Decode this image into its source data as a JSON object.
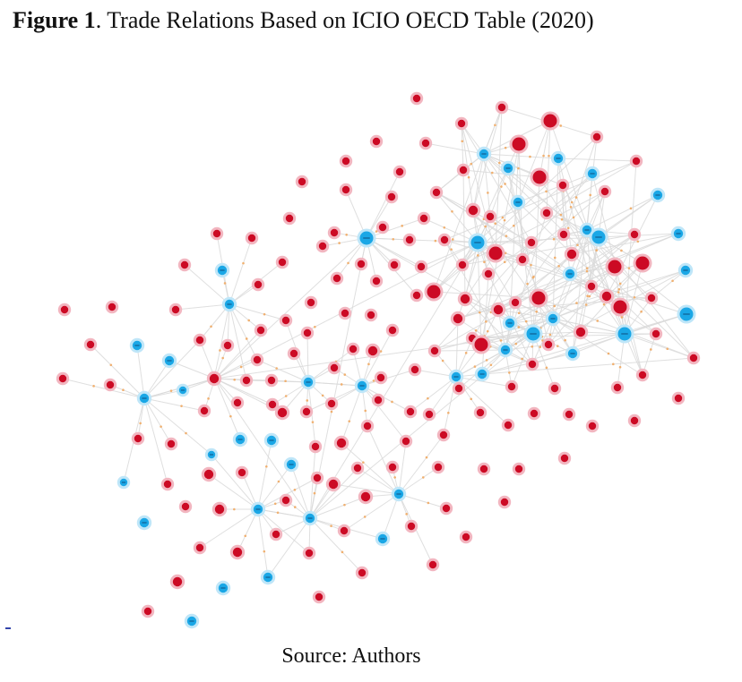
{
  "figure": {
    "label": "Figure 1",
    "title": ". Trade Relations Based on ICIO OECD Table (2020)"
  },
  "source": "Source: Authors",
  "colors": {
    "red_node": "#cc0a24",
    "red_halo": "#f2b6c0",
    "blue_node": "#1aa7e6",
    "blue_halo": "#bfe6f8",
    "edge": "#d9d9d9",
    "arrow": "#f0b070"
  }
}
